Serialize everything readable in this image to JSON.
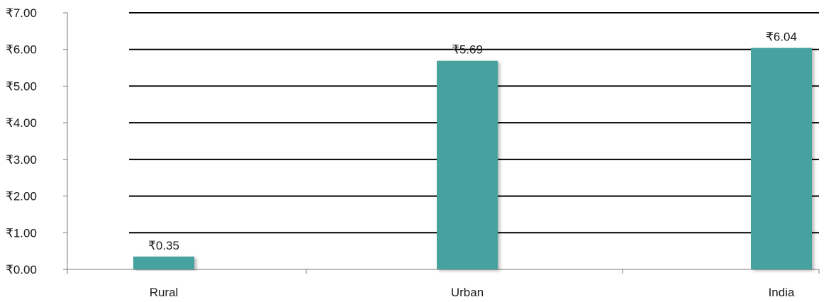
{
  "chart_data": {
    "type": "bar",
    "categories": [
      "Rural",
      "Urban",
      "India"
    ],
    "values": [
      0.35,
      5.69,
      6.04
    ],
    "data_labels": [
      "₹0.35",
      "₹5.69",
      "₹6.04"
    ],
    "title": "",
    "xlabel": "",
    "ylabel": "",
    "ylim": [
      0,
      7
    ],
    "y_ticks": [
      0,
      1,
      2,
      3,
      4,
      5,
      6,
      7
    ],
    "y_tick_labels": [
      "₹0.00",
      "₹1.00",
      "₹2.00",
      "₹3.00",
      "₹4.00",
      "₹5.00",
      "₹6.00",
      "₹7.00"
    ],
    "grid": true,
    "legend": "none",
    "bar_color": "#45a29e"
  }
}
